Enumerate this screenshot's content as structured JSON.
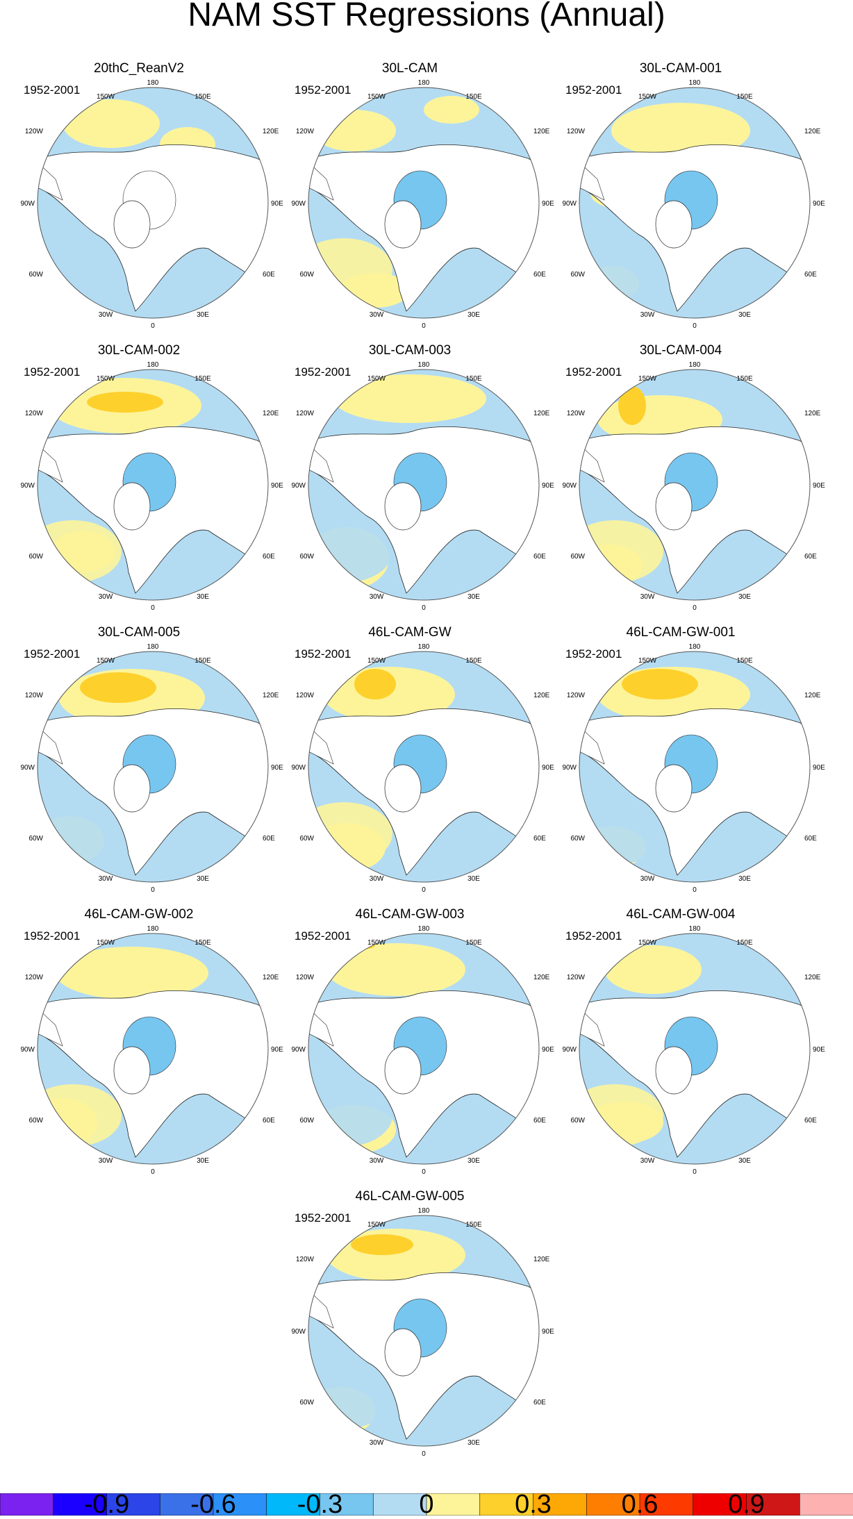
{
  "title": "NAM SST Regressions (Annual)",
  "period": "1952-2001",
  "map_labels": {
    "top": "180",
    "nw1": "150W",
    "ne1": "150E",
    "w2": "120W",
    "e2": "120E",
    "w3": "90W",
    "e3": "90E",
    "w4": "60W",
    "e4": "60E",
    "sw": "30W",
    "se": "30E",
    "bottom": "0"
  },
  "panels": [
    {
      "name": "20thC_ReanV2"
    },
    {
      "name": "30L-CAM"
    },
    {
      "name": "30L-CAM-001"
    },
    {
      "name": "30L-CAM-002"
    },
    {
      "name": "30L-CAM-003"
    },
    {
      "name": "30L-CAM-004"
    },
    {
      "name": "30L-CAM-005"
    },
    {
      "name": "46L-CAM-GW"
    },
    {
      "name": "46L-CAM-GW-001"
    },
    {
      "name": "46L-CAM-GW-002"
    },
    {
      "name": "46L-CAM-GW-003"
    },
    {
      "name": "46L-CAM-GW-004"
    },
    {
      "name": "46L-CAM-GW-005"
    }
  ],
  "chart_data": {
    "type": "heatmap",
    "projection": "north polar stereographic",
    "colorbar": {
      "tick_labels": [
        "-0.9",
        "-0.6",
        "-0.3",
        "0",
        "0.3",
        "0.6",
        "0.9"
      ],
      "tick_values": [
        -0.9,
        -0.6,
        -0.3,
        0,
        0.3,
        0.6,
        0.9
      ],
      "levels": [
        -1.05,
        -0.9,
        -0.75,
        -0.6,
        -0.45,
        -0.3,
        -0.15,
        0,
        0.15,
        0.3,
        0.45,
        0.6,
        0.75,
        0.9,
        1.05
      ],
      "colors": [
        "#7b22f0",
        "#1b00ff",
        "#2b45e8",
        "#3a70e8",
        "#2b90f7",
        "#00b8fa",
        "#77c6f0",
        "#b3dcf3",
        "#fdf49a",
        "#fed02c",
        "#fea805",
        "#fd7e00",
        "#fd3a00",
        "#ef0000",
        "#d01717",
        "#fdb1b1"
      ]
    }
  }
}
